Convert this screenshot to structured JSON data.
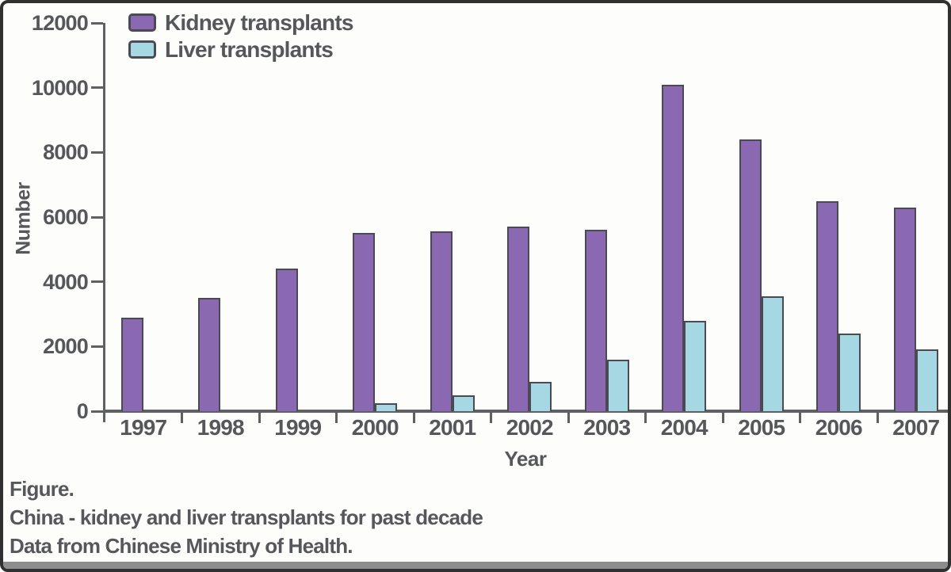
{
  "figure": {
    "background": "#fdfdfc",
    "frame_border_color": "#303030",
    "bottom_strip_color": "#8d8d8d",
    "text_color": "#56575a",
    "axis_color": "#5f6062"
  },
  "chart_data": {
    "type": "bar",
    "title": "",
    "xlabel": "Year",
    "ylabel": "Number",
    "categories": [
      "1997",
      "1998",
      "1999",
      "2000",
      "2001",
      "2002",
      "2003",
      "2004",
      "2005",
      "2006",
      "2007"
    ],
    "series": [
      {
        "name": "Kidney transplants",
        "color": "#8a68b2",
        "values": [
          2900,
          3500,
          4400,
          5500,
          5550,
          5700,
          5600,
          10100,
          8400,
          6500,
          6300
        ]
      },
      {
        "name": "Liver transplants",
        "color": "#a5d8e2",
        "values": [
          0,
          0,
          0,
          250,
          500,
          900,
          1600,
          2800,
          3550,
          2400,
          1900
        ]
      }
    ],
    "bar_border_color": "#4b4951",
    "ylim": [
      0,
      12000
    ],
    "yticks": [
      0,
      2000,
      4000,
      6000,
      8000,
      10000,
      12000
    ],
    "grid": false,
    "legend_position": "top-left"
  },
  "legend": {
    "items": [
      {
        "label": "Kidney transplants",
        "color": "#8a68b2"
      },
      {
        "label": "Liver transplants",
        "color": "#a5d8e2"
      }
    ]
  },
  "caption": {
    "line1": "Figure.",
    "line2": "China - kidney and liver transplants for past decade",
    "line3": "Data from Chinese Ministry of Health."
  }
}
